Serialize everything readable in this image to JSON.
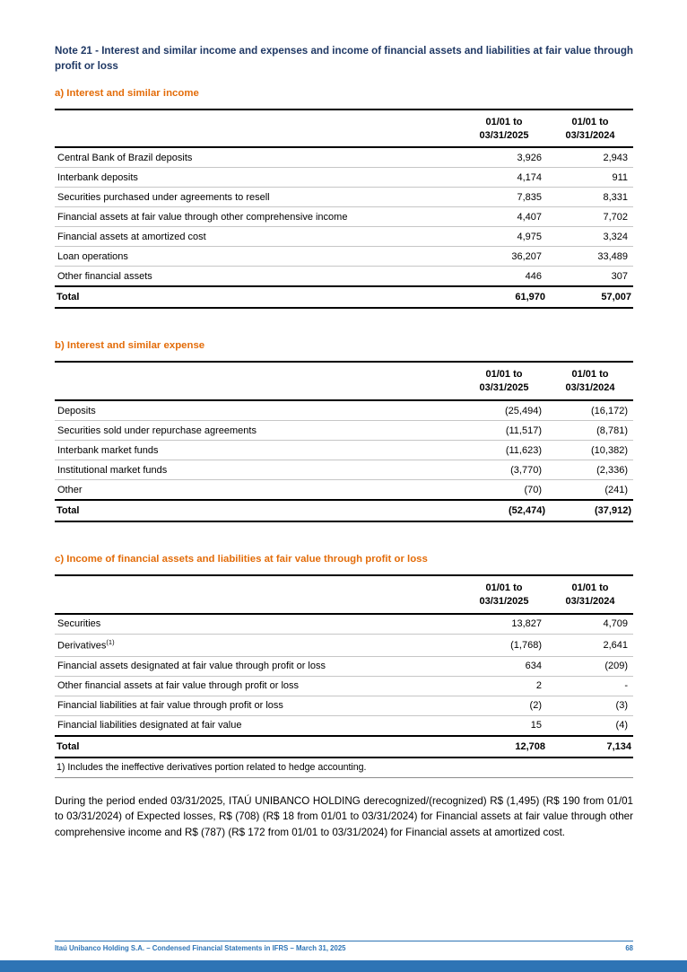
{
  "title": "Note 21 - Interest and similar income and expenses and income of financial assets and liabilities at fair value through profit or loss",
  "sections": [
    {
      "heading": "a) Interest and similar income",
      "col_headers": [
        "01/01 to\n03/31/2025",
        "01/01 to\n03/31/2024"
      ],
      "rows": [
        {
          "label": "Central Bank of Brazil deposits",
          "values": [
            "3,926",
            "2,943"
          ]
        },
        {
          "label": "Interbank deposits",
          "values": [
            "4,174",
            "911"
          ]
        },
        {
          "label": "Securities purchased under agreements to resell",
          "values": [
            "7,835",
            "8,331"
          ]
        },
        {
          "label": "Financial assets at fair value through other comprehensive income",
          "values": [
            "4,407",
            "7,702"
          ]
        },
        {
          "label": "Financial assets at amortized cost",
          "values": [
            "4,975",
            "3,324"
          ]
        },
        {
          "label": "Loan operations",
          "values": [
            "36,207",
            "33,489"
          ]
        },
        {
          "label": "Other financial assets",
          "values": [
            "446",
            "307"
          ]
        }
      ],
      "total": {
        "label": "Total",
        "values": [
          "61,970",
          "57,007"
        ]
      }
    },
    {
      "heading": "b) Interest and similar expense",
      "col_headers": [
        "01/01 to\n03/31/2025",
        "01/01 to\n03/31/2024"
      ],
      "rows": [
        {
          "label": "Deposits",
          "values": [
            "(25,494)",
            "(16,172)"
          ]
        },
        {
          "label": "Securities sold under repurchase agreements",
          "values": [
            "(11,517)",
            "(8,781)"
          ]
        },
        {
          "label": "Interbank market funds",
          "values": [
            "(11,623)",
            "(10,382)"
          ]
        },
        {
          "label": "Institutional market funds",
          "values": [
            "(3,770)",
            "(2,336)"
          ]
        },
        {
          "label": "Other",
          "values": [
            "(70)",
            "(241)"
          ]
        }
      ],
      "total": {
        "label": "Total",
        "values": [
          "(52,474)",
          "(37,912)"
        ]
      }
    },
    {
      "heading": "c) Income of financial assets and liabilities at fair value through profit or loss",
      "col_headers": [
        "01/01 to\n03/31/2025",
        "01/01 to\n03/31/2024"
      ],
      "rows": [
        {
          "label": "Securities",
          "values": [
            "13,827",
            "4,709"
          ]
        },
        {
          "label": "Derivatives",
          "sup": "(1)",
          "values": [
            "(1,768)",
            "2,641"
          ]
        },
        {
          "label": "Financial assets designated at fair value through profit or loss",
          "values": [
            "634",
            "(209)"
          ]
        },
        {
          "label": "Other financial assets at fair value through profit or loss",
          "values": [
            "2",
            "-"
          ]
        },
        {
          "label": "Financial liabilities at fair value through profit or loss",
          "values": [
            "(2)",
            "(3)"
          ]
        },
        {
          "label": "Financial liabilities designated at fair value",
          "values": [
            "15",
            "(4)"
          ]
        }
      ],
      "total": {
        "label": "Total",
        "values": [
          "12,708",
          "7,134"
        ]
      },
      "footnote": "1) Includes the ineffective derivatives portion related to hedge accounting."
    }
  ],
  "paragraph": "During the period ended 03/31/2025, ITAÚ UNIBANCO HOLDING derecognized/(recognized) R$ (1,495) (R$ 190 from 01/01 to 03/31/2024) of Expected losses, R$ (708) (R$ 18 from 01/01 to 03/31/2024) for Financial assets at fair value through other comprehensive income and R$ (787) (R$ 172 from 01/01 to 03/31/2024) for Financial assets at amortized cost.",
  "footer": {
    "text": "Itaú Unibanco Holding S.A. – Condensed Financial Statements in IFRS – March 31, 2025",
    "page_number": "68"
  },
  "colors": {
    "title_blue": "#1f3864",
    "heading_orange": "#e36c09",
    "footer_blue": "#2e74b5",
    "bottom_bar": "#2e74b5"
  }
}
